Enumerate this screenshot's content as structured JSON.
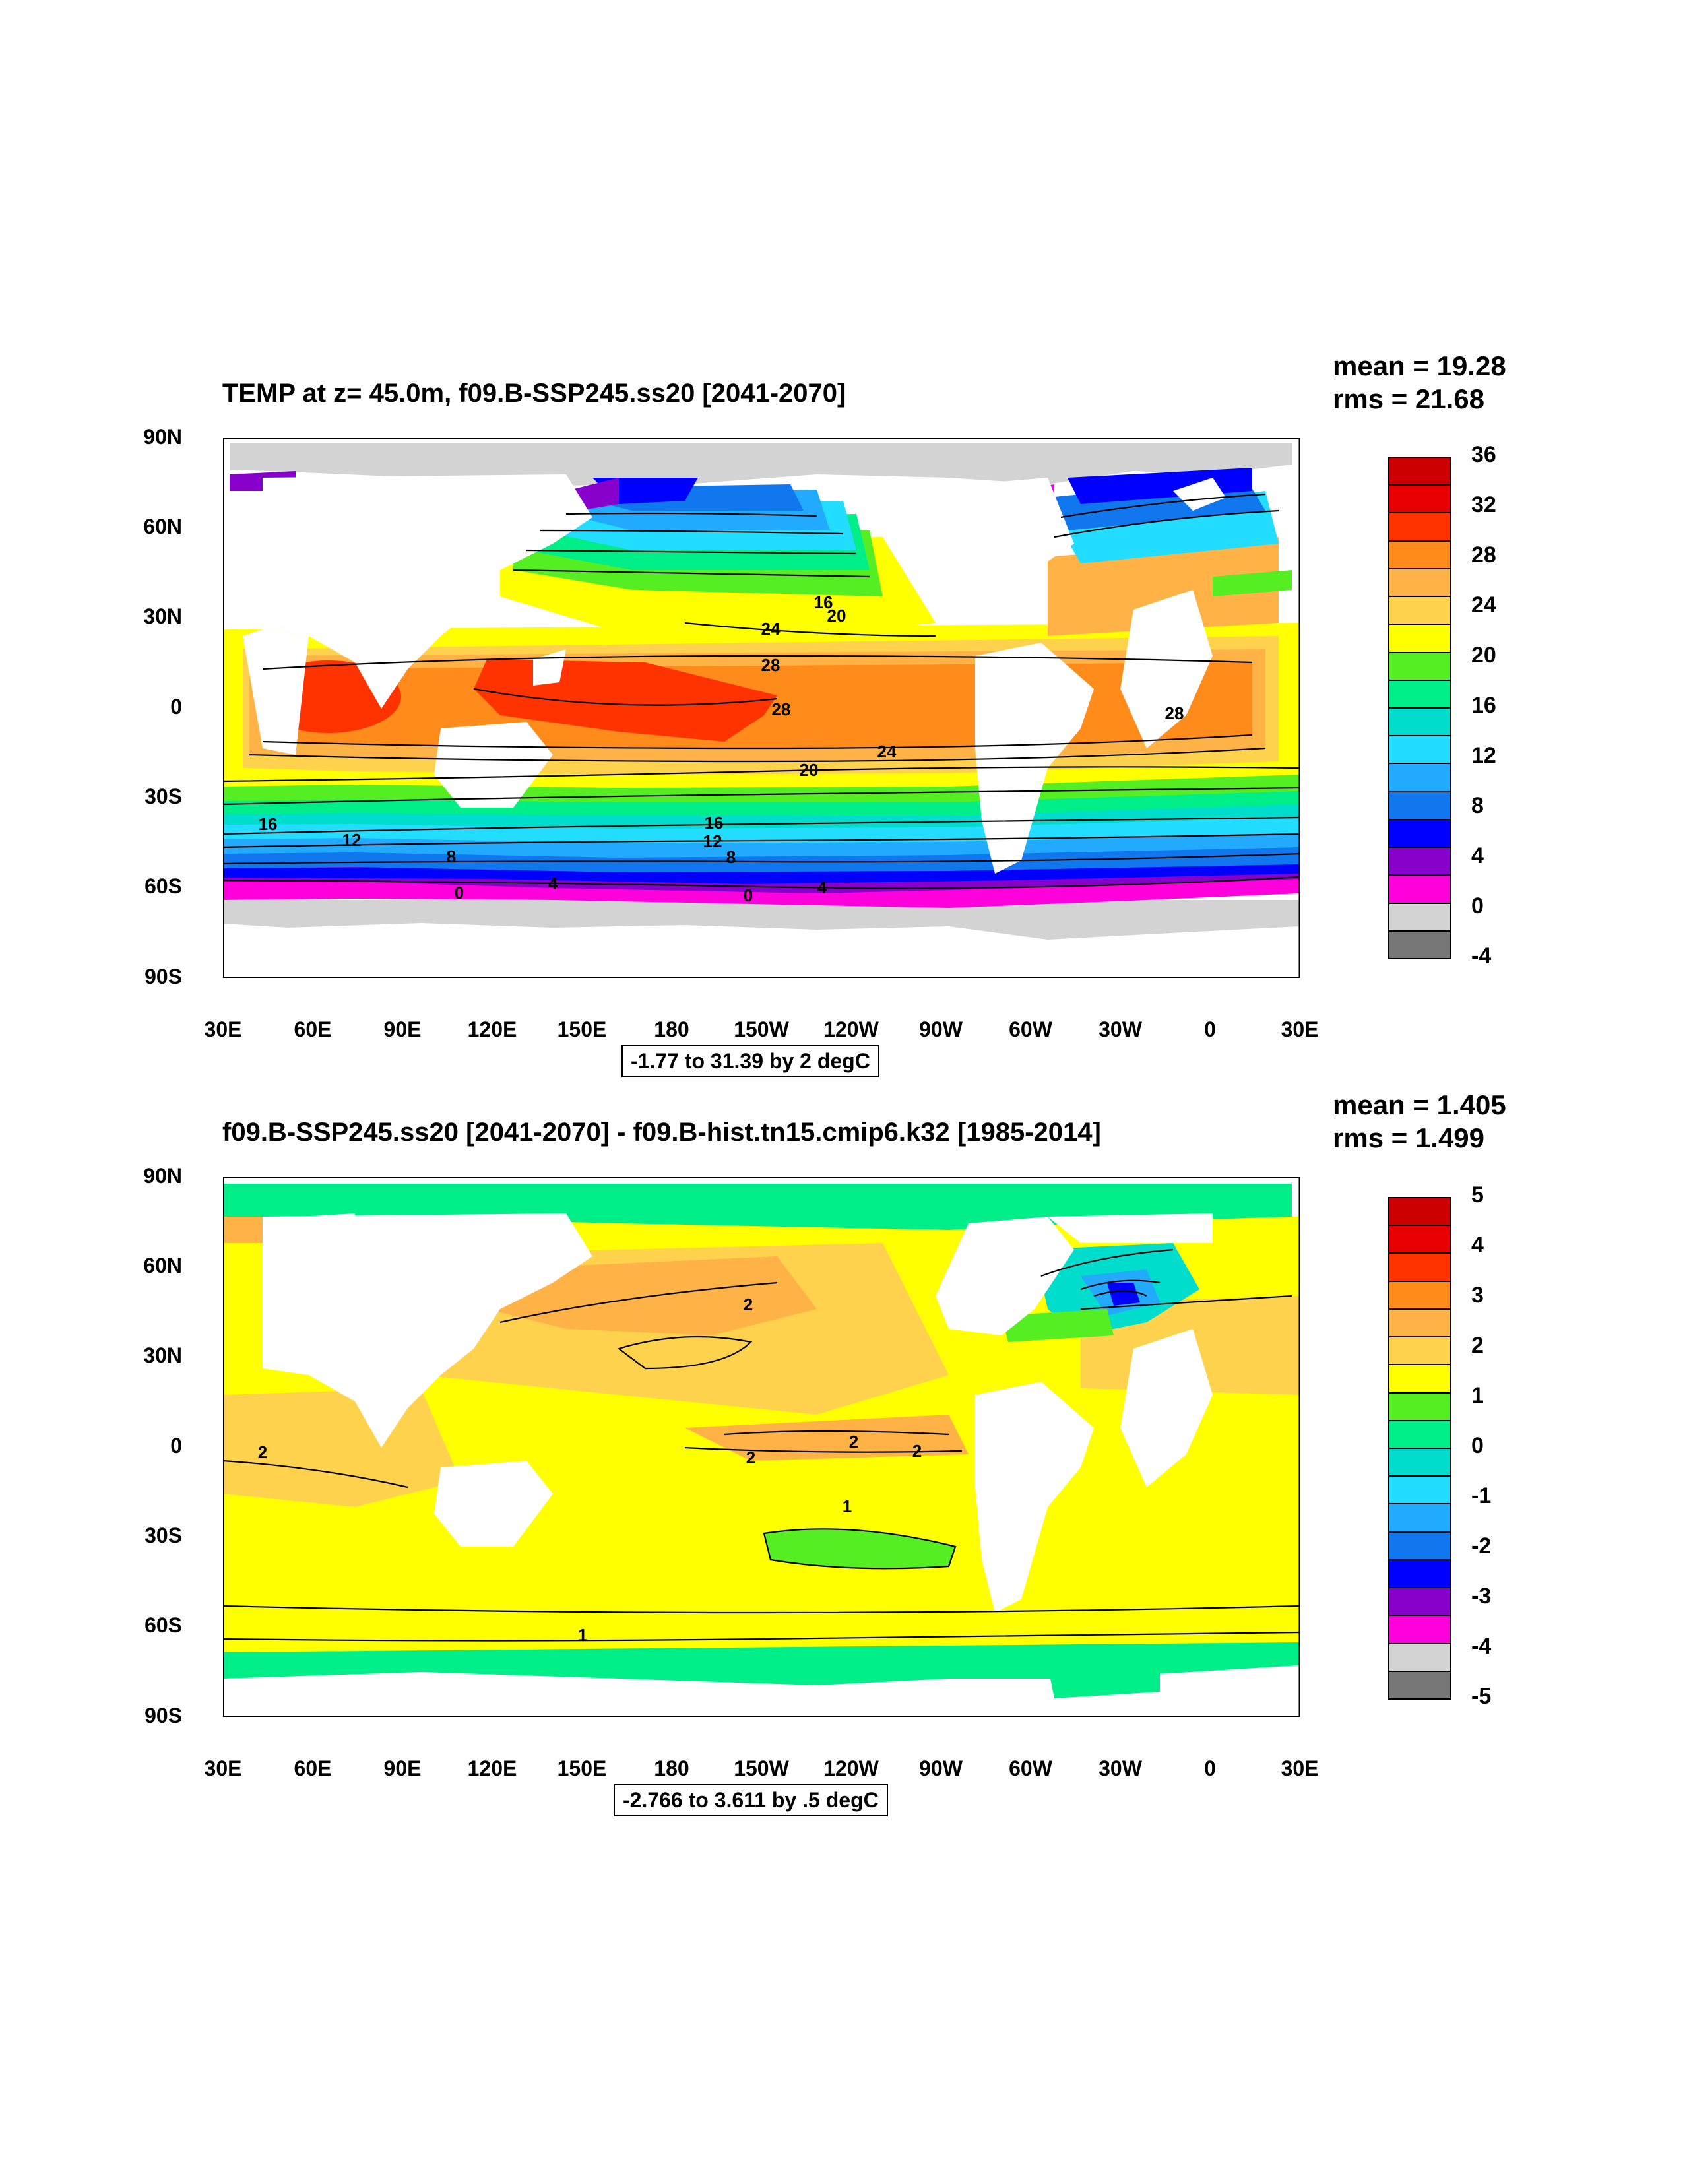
{
  "panels": [
    {
      "title": "TEMP at z=  45.0m, f09.B-SSP245.ss20 [2041-2070]",
      "stats": {
        "mean": "mean = 19.28",
        "rms": "rms = 21.68"
      },
      "y_ticks": [
        "90N",
        "60N",
        "30N",
        "0",
        "30S",
        "60S",
        "90S"
      ],
      "x_ticks": [
        "30E",
        "60E",
        "90E",
        "120E",
        "150E",
        "180",
        "150W",
        "120W",
        "90W",
        "60W",
        "30W",
        "0",
        "30E"
      ],
      "range_text": "-1.77 to 31.39 by 2 degC",
      "legend_labels": [
        "36",
        "32",
        "28",
        "24",
        "20",
        "16",
        "12",
        "8",
        "4",
        "0",
        "-4"
      ],
      "legend_colors": [
        "#cc0000",
        "#e80000",
        "#ff3300",
        "#ff8c1a",
        "#ffb347",
        "#ffd24d",
        "#ffff00",
        "#55ee22",
        "#00ee88",
        "#00ddcc",
        "#22ddff",
        "#22aaff",
        "#1177ee",
        "#0000ff",
        "#8800cc",
        "#ff00dd",
        "#d3d3d3",
        "#777777"
      ],
      "contour_labels": [
        "16",
        "20",
        "24",
        "28",
        "28",
        "28",
        "24",
        "20",
        "16",
        "16",
        "12",
        "12",
        "8",
        "8",
        "4",
        "4",
        "0",
        "0"
      ]
    },
    {
      "title": "f09.B-SSP245.ss20 [2041-2070] - f09.B-hist.tn15.cmip6.k32 [1985-2014]",
      "stats": {
        "mean": "mean = 1.405",
        "rms": "rms = 1.499"
      },
      "y_ticks": [
        "90N",
        "60N",
        "30N",
        "0",
        "30S",
        "60S",
        "90S"
      ],
      "x_ticks": [
        "30E",
        "60E",
        "90E",
        "120E",
        "150E",
        "180",
        "150W",
        "120W",
        "90W",
        "60W",
        "30W",
        "0",
        "30E"
      ],
      "range_text": "-2.766 to 3.611 by .5 degC",
      "legend_labels": [
        "5",
        "4",
        "3",
        "2",
        "1",
        "0",
        "-1",
        "-2",
        "-3",
        "-4",
        "-5"
      ],
      "legend_colors": [
        "#cc0000",
        "#e80000",
        "#ff3300",
        "#ff8c1a",
        "#ffb347",
        "#ffd24d",
        "#ffff00",
        "#55ee22",
        "#00ee88",
        "#00ddcc",
        "#22ddff",
        "#22aaff",
        "#1177ee",
        "#0000ff",
        "#8800cc",
        "#ff00dd",
        "#d3d3d3",
        "#777777"
      ],
      "contour_labels": [
        "2",
        "2",
        "2",
        "2",
        "2",
        "1",
        "1"
      ]
    }
  ]
}
